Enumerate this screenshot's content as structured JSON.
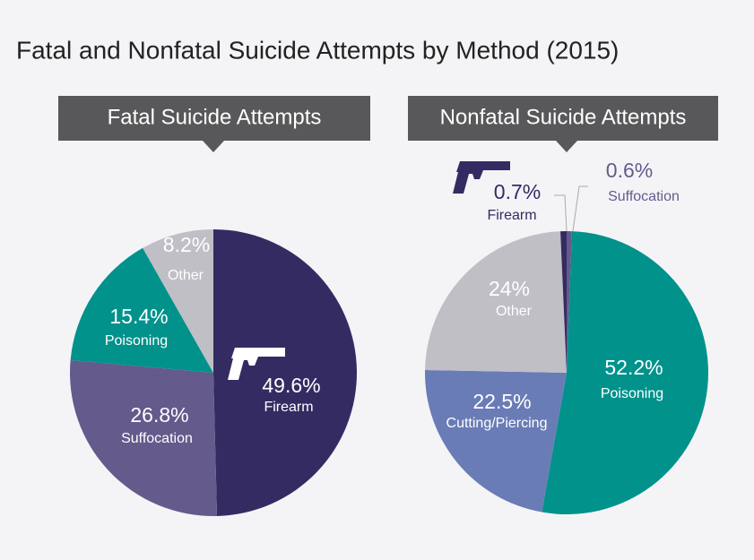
{
  "title": "Fatal and Nonfatal Suicide Attempts by Method (2015)",
  "chart_data": [
    {
      "type": "pie",
      "title": "Fatal Suicide Attempts",
      "categories": [
        "Firearm",
        "Suffocation",
        "Poisoning",
        "Other"
      ],
      "values": [
        49.6,
        26.8,
        15.4,
        8.2
      ],
      "value_labels": [
        "49.6%",
        "26.8%",
        "15.4%",
        "8.2%"
      ],
      "colors": [
        "#352b63",
        "#645a8c",
        "#00928b",
        "#bfbfc5"
      ]
    },
    {
      "type": "pie",
      "title": "Nonfatal Suicide Attempts",
      "categories": [
        "Suffocation",
        "Poisoning",
        "Cutting/Piercing",
        "Other",
        "Firearm"
      ],
      "values": [
        0.6,
        52.2,
        22.5,
        24,
        0.7
      ],
      "value_labels": [
        "0.6%",
        "52.2%",
        "22.5%",
        "24%",
        "0.7%"
      ],
      "colors": [
        "#645a8c",
        "#00928b",
        "#6a7cb6",
        "#bfbfc5",
        "#352b63"
      ]
    }
  ]
}
